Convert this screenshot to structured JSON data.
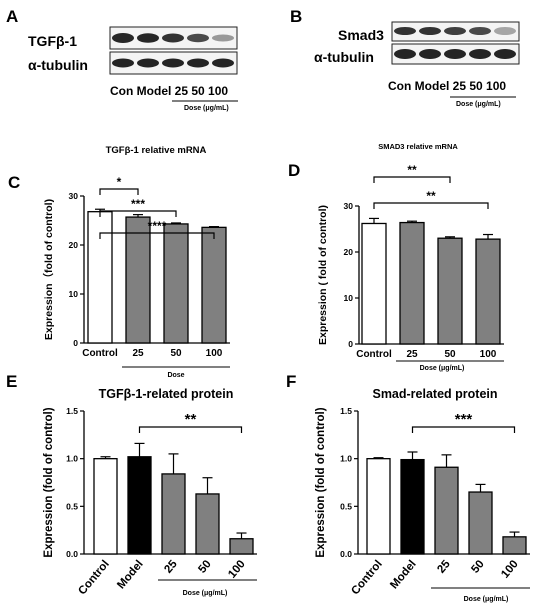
{
  "panels": {
    "A": {
      "letter": "A",
      "blots": [
        "TGFβ-1",
        "α-tubulin"
      ],
      "lanes": "Con Model 25 50 100",
      "dose_label": "Dose (μg/mL)"
    },
    "B": {
      "letter": "B",
      "blots": [
        "Smad3",
        "α-tubulin"
      ],
      "lanes": "Con Model 25 50 100",
      "dose_label": "Dose (μg/mL)"
    }
  },
  "chart_data": [
    {
      "id": "C",
      "letter": "C",
      "type": "bar",
      "title": "TGFβ-1 relative mRNA",
      "ylabel": "Expression（fold of control)",
      "categories": [
        "Control",
        "25",
        "50",
        "100"
      ],
      "values": [
        26.8,
        25.7,
        24.3,
        23.6
      ],
      "errors": [
        0.5,
        0.5,
        0.2,
        0.15
      ],
      "fills": [
        "#ffffff",
        "#808080",
        "#808080",
        "#808080"
      ],
      "ylim": [
        0,
        30
      ],
      "yticks": [
        0,
        10,
        20,
        30
      ],
      "group_label": "Dose",
      "significance": [
        {
          "from": 0,
          "to": 1,
          "text": "*"
        },
        {
          "from": 0,
          "to": 2,
          "text": "***"
        },
        {
          "from": 0,
          "to": 3,
          "text": "****"
        }
      ]
    },
    {
      "id": "D",
      "letter": "D",
      "type": "bar",
      "title": "SMAD3 relative mRNA",
      "ylabel": "Expression ( fold of control)",
      "categories": [
        "Control",
        "25",
        "50",
        "100"
      ],
      "values": [
        26.2,
        26.4,
        23.0,
        22.8
      ],
      "errors": [
        1.1,
        0.3,
        0.3,
        1.0
      ],
      "fills": [
        "#ffffff",
        "#808080",
        "#808080",
        "#808080"
      ],
      "ylim": [
        0,
        30
      ],
      "yticks": [
        0,
        10,
        20,
        30
      ],
      "group_label": "Dose (μg/mL)",
      "significance": [
        {
          "from": 0,
          "to": 2,
          "text": "**"
        },
        {
          "from": 0,
          "to": 3,
          "text": "**"
        }
      ]
    },
    {
      "id": "E",
      "letter": "E",
      "type": "bar",
      "title": "TGFβ-1-related protein",
      "ylabel": "Expression (fold of control)",
      "categories": [
        "Control",
        "Model",
        "25",
        "50",
        "100"
      ],
      "values": [
        1.0,
        1.02,
        0.84,
        0.63,
        0.16
      ],
      "errors": [
        0.02,
        0.14,
        0.21,
        0.17,
        0.06
      ],
      "fills": [
        "#ffffff",
        "#000000",
        "#808080",
        "#808080",
        "#808080"
      ],
      "ylim": [
        0,
        1.5
      ],
      "yticks": [
        "0.0",
        "0.5",
        "1.0",
        "1.5"
      ],
      "group_label": "Dose (μg/mL)",
      "significance": [
        {
          "from": 1,
          "to": 4,
          "text": "**"
        }
      ]
    },
    {
      "id": "F",
      "letter": "F",
      "type": "bar",
      "title": "Smad-related protein",
      "ylabel": "Expression (fold of control)",
      "categories": [
        "Control",
        "Model",
        "25",
        "50",
        "100"
      ],
      "values": [
        1.0,
        0.99,
        0.91,
        0.65,
        0.18
      ],
      "errors": [
        0.01,
        0.08,
        0.13,
        0.08,
        0.05
      ],
      "fills": [
        "#ffffff",
        "#000000",
        "#808080",
        "#808080",
        "#808080"
      ],
      "ylim": [
        0,
        1.5
      ],
      "yticks": [
        "0.0",
        "0.5",
        "1.0",
        "1.5"
      ],
      "group_label": "Dose (μg/mL)",
      "significance": [
        {
          "from": 1,
          "to": 4,
          "text": "***"
        }
      ]
    }
  ]
}
